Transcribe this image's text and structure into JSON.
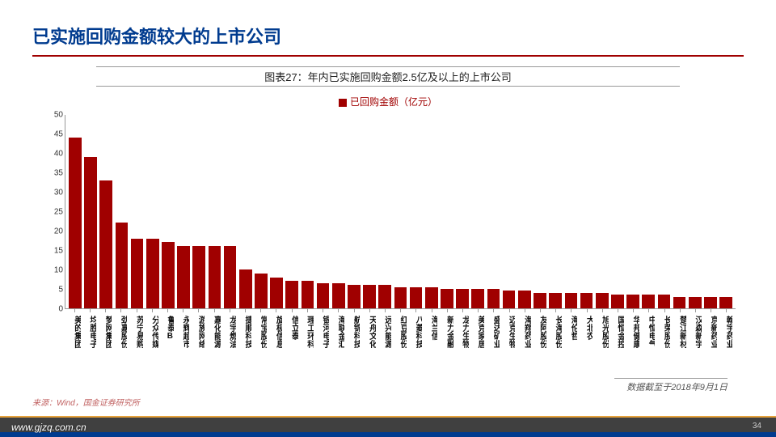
{
  "slide_title": "已实施回购金额较大的上市公司",
  "chart_caption": "图表27：年内已实施回购金额2.5亿及以上的上市公司",
  "legend_label": "已回购金额（亿元）",
  "date_note": "数据截至于2018年9月1日",
  "source": "来源：Wind，国金证券研究所",
  "footer_url": "www.gjzq.com.cn",
  "page_number": "34",
  "chart": {
    "type": "bar",
    "bar_color": "#a00000",
    "title_color": "#003b8f",
    "accent_line_color": "#a00000",
    "background_color": "#ffffff",
    "axis_color": "#999999",
    "label_fontsize": 10,
    "ylim": [
      0,
      50
    ],
    "ytick_step": 5,
    "yticks": [
      0,
      5,
      10,
      15,
      20,
      25,
      30,
      35,
      40,
      45,
      50
    ],
    "categories": [
      "美的集团",
      "均胜电子",
      "梦网集团",
      "劲嘉股份",
      "苏宁易购",
      "分众传媒",
      "鲁泰B",
      "永辉超市",
      "游族网络",
      "嘉化能源",
      "龙宇燃油",
      "捷顺科技",
      "常宝股份",
      "旋极信息",
      "信立泰",
      "理工环科",
      "银河电子",
      "海联金汇",
      "航锦科技",
      "天舟文化",
      "远兴能源",
      "红豆股份",
      "八菱科技",
      "海兰信",
      "新力金融",
      "龙力生物",
      "美克家居",
      "盛达矿业",
      "迈克生物",
      "海翔药业",
      "友阿股份",
      "长海股份",
      "海伦哲",
      "大北农",
      "旭光股份",
      "国恒金控",
      "华邦健康",
      "中恒电气",
      "长荣股份",
      "楚江新材",
      "汉森新宇",
      "京新药业",
      "翰宇药业"
    ],
    "values": [
      44,
      39,
      33,
      22,
      18,
      18,
      17,
      16,
      16,
      16,
      16,
      10,
      9,
      8,
      7,
      7,
      6.5,
      6.5,
      6,
      6,
      6,
      5.5,
      5.5,
      5.5,
      5,
      5,
      5,
      5,
      4.5,
      4.5,
      4,
      4,
      4,
      4,
      4,
      3.5,
      3.5,
      3.5,
      3.5,
      3,
      3,
      3,
      3
    ]
  }
}
